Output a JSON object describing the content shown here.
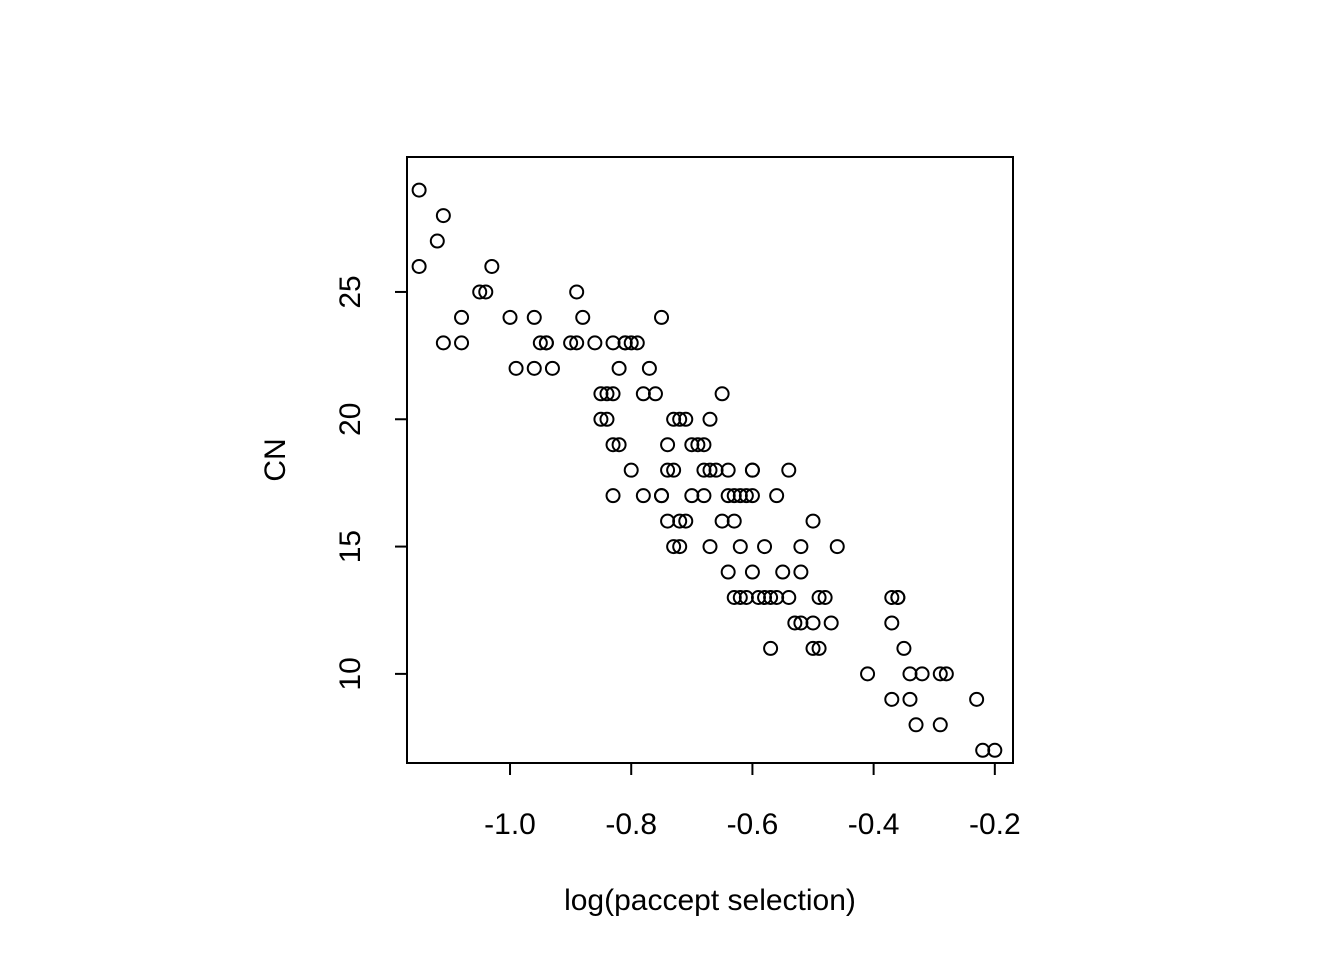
{
  "chart_data": {
    "type": "scatter",
    "xlabel": "log(paccept selection)",
    "ylabel": "CN",
    "xlim": [
      -1.17,
      -0.17
    ],
    "ylim": [
      6.5,
      30.3
    ],
    "x_ticks": [
      -1.0,
      -0.8,
      -0.6,
      -0.4,
      -0.2
    ],
    "x_tick_labels": [
      "-1.0",
      "-0.8",
      "-0.6",
      "-0.4",
      "-0.2"
    ],
    "y_ticks": [
      10,
      15,
      20,
      25
    ],
    "y_tick_labels": [
      "10",
      "15",
      "20",
      "25"
    ],
    "marker": "open-circle",
    "color": "#000000",
    "points": [
      [
        -1.15,
        29
      ],
      [
        -1.15,
        26
      ],
      [
        -1.12,
        27
      ],
      [
        -1.11,
        28
      ],
      [
        -1.11,
        23
      ],
      [
        -1.08,
        23
      ],
      [
        -1.08,
        24
      ],
      [
        -1.05,
        25
      ],
      [
        -1.04,
        25
      ],
      [
        -1.03,
        26
      ],
      [
        -1.0,
        24
      ],
      [
        -0.99,
        22
      ],
      [
        -0.96,
        22
      ],
      [
        -0.96,
        24
      ],
      [
        -0.95,
        23
      ],
      [
        -0.94,
        23
      ],
      [
        -0.94,
        23
      ],
      [
        -0.93,
        22
      ],
      [
        -0.9,
        23
      ],
      [
        -0.89,
        23
      ],
      [
        -0.89,
        25
      ],
      [
        -0.88,
        24
      ],
      [
        -0.86,
        23
      ],
      [
        -0.85,
        21
      ],
      [
        -0.85,
        20
      ],
      [
        -0.84,
        21
      ],
      [
        -0.84,
        20
      ],
      [
        -0.83,
        21
      ],
      [
        -0.83,
        23
      ],
      [
        -0.83,
        17
      ],
      [
        -0.83,
        19
      ],
      [
        -0.82,
        19
      ],
      [
        -0.82,
        22
      ],
      [
        -0.81,
        23
      ],
      [
        -0.81,
        23
      ],
      [
        -0.8,
        23
      ],
      [
        -0.8,
        18
      ],
      [
        -0.79,
        23
      ],
      [
        -0.78,
        17
      ],
      [
        -0.78,
        21
      ],
      [
        -0.77,
        22
      ],
      [
        -0.76,
        21
      ],
      [
        -0.75,
        17
      ],
      [
        -0.75,
        24
      ],
      [
        -0.75,
        17
      ],
      [
        -0.74,
        16
      ],
      [
        -0.74,
        18
      ],
      [
        -0.74,
        19
      ],
      [
        -0.73,
        20
      ],
      [
        -0.73,
        18
      ],
      [
        -0.73,
        15
      ],
      [
        -0.72,
        20
      ],
      [
        -0.72,
        16
      ],
      [
        -0.72,
        15
      ],
      [
        -0.71,
        20
      ],
      [
        -0.71,
        16
      ],
      [
        -0.7,
        17
      ],
      [
        -0.7,
        19
      ],
      [
        -0.69,
        19
      ],
      [
        -0.68,
        18
      ],
      [
        -0.68,
        17
      ],
      [
        -0.68,
        19
      ],
      [
        -0.67,
        20
      ],
      [
        -0.67,
        18
      ],
      [
        -0.67,
        15
      ],
      [
        -0.66,
        18
      ],
      [
        -0.65,
        21
      ],
      [
        -0.65,
        16
      ],
      [
        -0.64,
        17
      ],
      [
        -0.64,
        18
      ],
      [
        -0.64,
        14
      ],
      [
        -0.63,
        16
      ],
      [
        -0.63,
        13
      ],
      [
        -0.63,
        17
      ],
      [
        -0.62,
        17
      ],
      [
        -0.62,
        15
      ],
      [
        -0.62,
        13
      ],
      [
        -0.61,
        17
      ],
      [
        -0.61,
        13
      ],
      [
        -0.6,
        14
      ],
      [
        -0.6,
        18
      ],
      [
        -0.6,
        18
      ],
      [
        -0.6,
        17
      ],
      [
        -0.59,
        13
      ],
      [
        -0.58,
        13
      ],
      [
        -0.58,
        15
      ],
      [
        -0.57,
        11
      ],
      [
        -0.57,
        13
      ],
      [
        -0.56,
        13
      ],
      [
        -0.56,
        17
      ],
      [
        -0.55,
        14
      ],
      [
        -0.54,
        18
      ],
      [
        -0.54,
        13
      ],
      [
        -0.53,
        12
      ],
      [
        -0.52,
        14
      ],
      [
        -0.52,
        12
      ],
      [
        -0.52,
        15
      ],
      [
        -0.5,
        16
      ],
      [
        -0.5,
        11
      ],
      [
        -0.5,
        12
      ],
      [
        -0.49,
        11
      ],
      [
        -0.49,
        13
      ],
      [
        -0.48,
        13
      ],
      [
        -0.47,
        12
      ],
      [
        -0.46,
        15
      ],
      [
        -0.41,
        10
      ],
      [
        -0.37,
        9
      ],
      [
        -0.37,
        12
      ],
      [
        -0.37,
        13
      ],
      [
        -0.36,
        13
      ],
      [
        -0.36,
        13
      ],
      [
        -0.35,
        11
      ],
      [
        -0.34,
        10
      ],
      [
        -0.34,
        9
      ],
      [
        -0.33,
        8
      ],
      [
        -0.32,
        10
      ],
      [
        -0.29,
        8
      ],
      [
        -0.29,
        10
      ],
      [
        -0.28,
        10
      ],
      [
        -0.23,
        9
      ],
      [
        -0.22,
        7
      ],
      [
        -0.2,
        7
      ]
    ]
  }
}
